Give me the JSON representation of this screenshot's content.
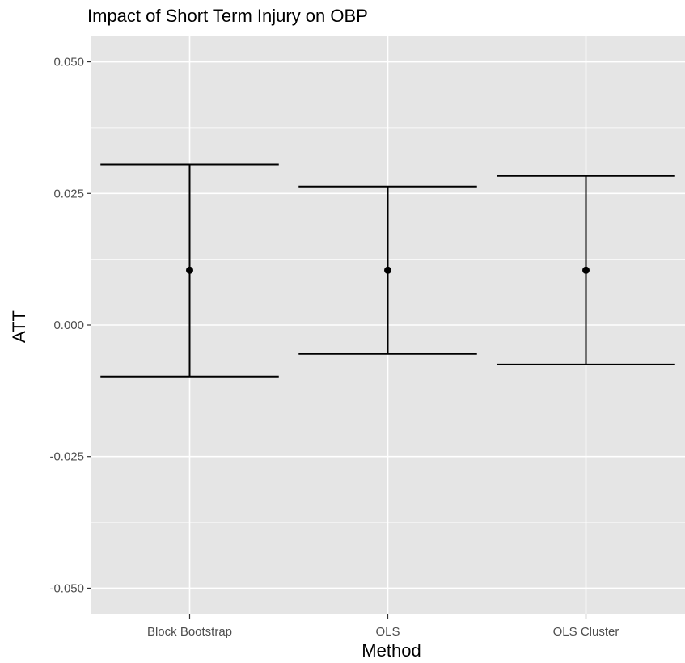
{
  "chart_data": {
    "type": "errorbar",
    "title": "Impact of Short Term Injury on OBP",
    "xlabel": "Method",
    "ylabel": "ATT",
    "categories": [
      "Block Bootstrap",
      "OLS",
      "OLS Cluster"
    ],
    "estimates": [
      0.0104,
      0.0104,
      0.0104
    ],
    "lower": [
      -0.0098,
      -0.0055,
      -0.0075
    ],
    "upper": [
      0.0305,
      0.0263,
      0.0283
    ],
    "ylim": [
      -0.055,
      0.055
    ],
    "yticks": [
      -0.05,
      -0.025,
      0.0,
      0.025,
      0.05
    ],
    "ytick_labels": [
      "-0.050",
      "-0.025",
      "0.000",
      "0.025",
      "0.050"
    ],
    "grid": true,
    "legend": "none",
    "colors": {
      "panel": "#e5e5e5",
      "grid": "#ffffff",
      "marks": "#000000",
      "tick_text": "#4d4d4d"
    }
  }
}
